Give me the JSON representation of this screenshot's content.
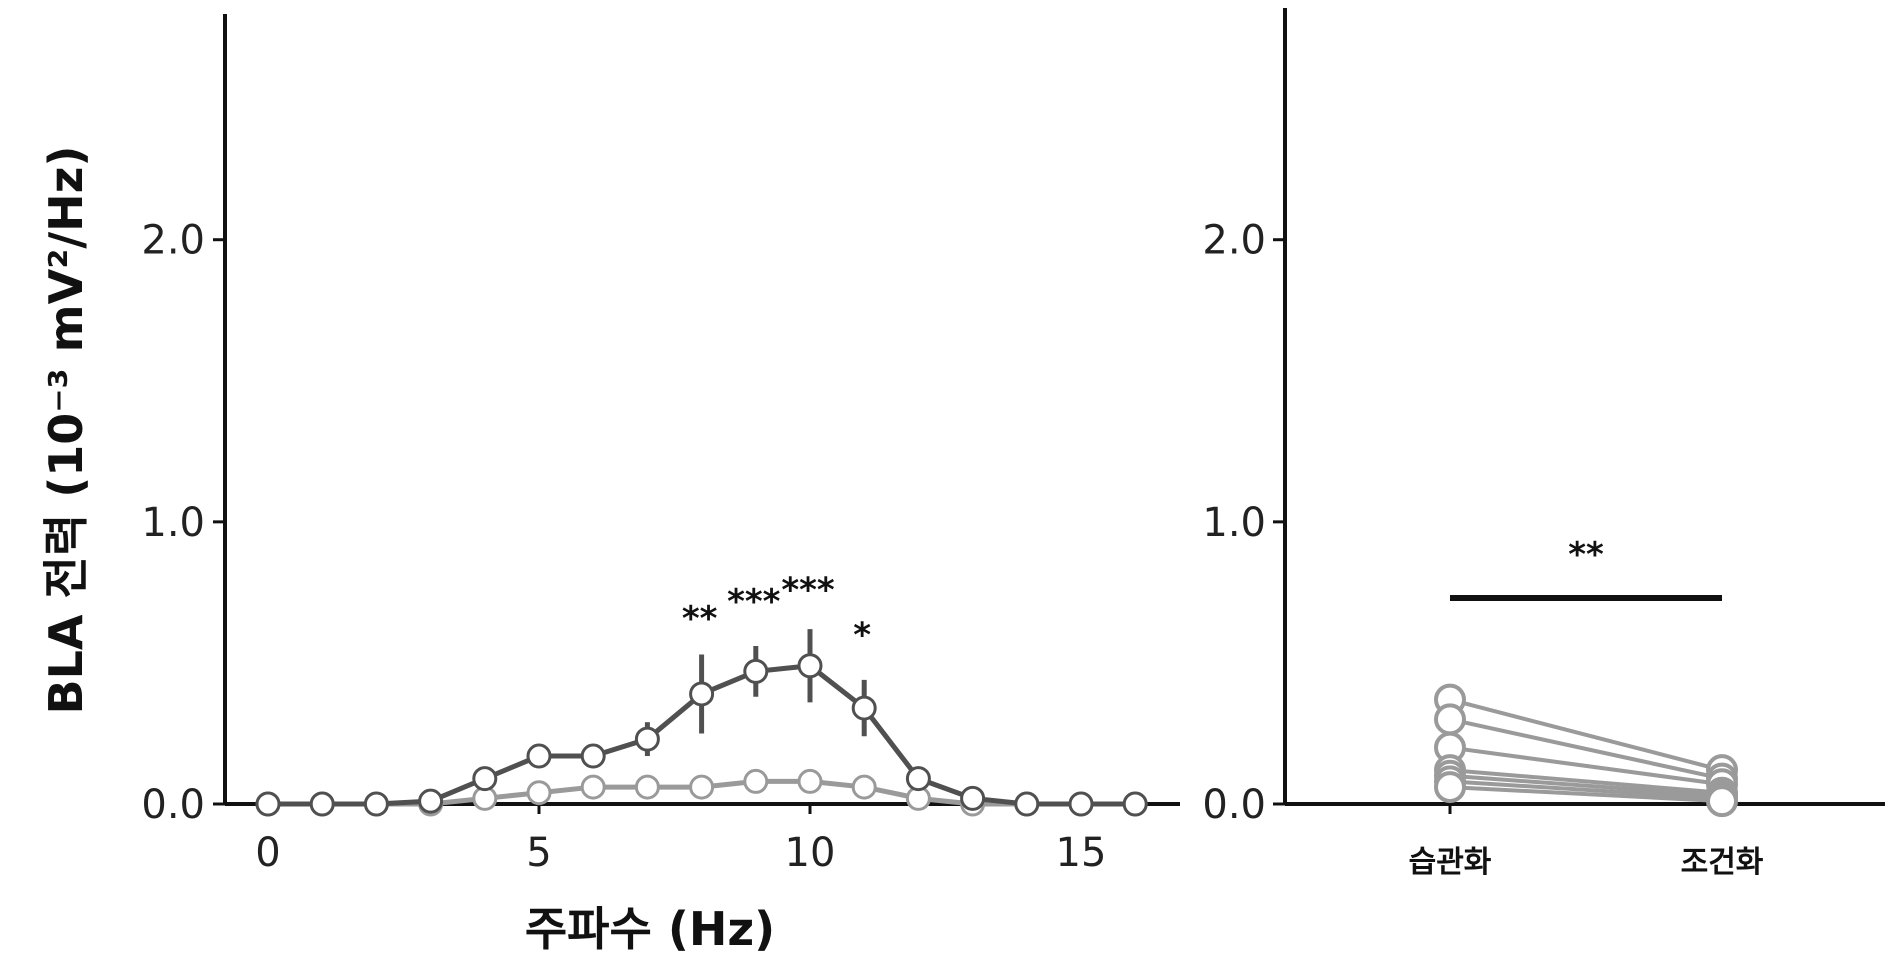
{
  "chart_data": [
    {
      "type": "line",
      "xlabel": "주파수 (Hz)",
      "ylabel": "BLA 전력 (10⁻³ mV²/Hz)",
      "xlim": [
        -0.5,
        17
      ],
      "ylim": [
        0,
        2.8
      ],
      "xticks": [
        "0",
        "5",
        "10",
        "15"
      ],
      "yticks": [
        "0.0",
        "1.0",
        "2.0"
      ],
      "x": [
        0,
        1,
        2,
        3,
        4,
        5,
        6,
        7,
        8,
        9,
        10,
        11,
        12,
        13,
        14,
        15,
        16
      ],
      "series": [
        {
          "values": [
            0.0,
            0.0,
            0.0,
            0.01,
            0.09,
            0.17,
            0.17,
            0.23,
            0.39,
            0.47,
            0.49,
            0.34,
            0.09,
            0.02,
            0.0,
            0.0,
            0.0
          ],
          "errors": [
            0,
            0,
            0,
            0,
            0.02,
            0.02,
            0.02,
            0.06,
            0.14,
            0.09,
            0.13,
            0.1,
            0.02,
            0,
            0,
            0,
            0
          ],
          "color": "#505050"
        },
        {
          "values": [
            0.0,
            0.0,
            0.0,
            0.0,
            0.02,
            0.04,
            0.06,
            0.06,
            0.06,
            0.08,
            0.08,
            0.06,
            0.02,
            0.0,
            0.0,
            0.0,
            0.0
          ],
          "color": "#9a9a9a"
        }
      ],
      "annotations": [
        {
          "x": 8,
          "text": "**"
        },
        {
          "x": 9,
          "text": "***"
        },
        {
          "x": 10,
          "text": "***"
        },
        {
          "x": 11,
          "text": "*"
        }
      ]
    },
    {
      "type": "line",
      "categories": [
        "습관화",
        "조건화"
      ],
      "ylim": [
        0,
        2.8
      ],
      "yticks": [
        "2.0",
        "1.0",
        "0.0"
      ],
      "pairs": [
        [
          0.37,
          0.12
        ],
        [
          0.3,
          0.09
        ],
        [
          0.2,
          0.07
        ],
        [
          0.12,
          0.04
        ],
        [
          0.1,
          0.03
        ],
        [
          0.08,
          0.02
        ],
        [
          0.06,
          0.01
        ]
      ],
      "color": "#9a9a9a",
      "significance": {
        "text": "**",
        "y": 0.73
      }
    }
  ]
}
